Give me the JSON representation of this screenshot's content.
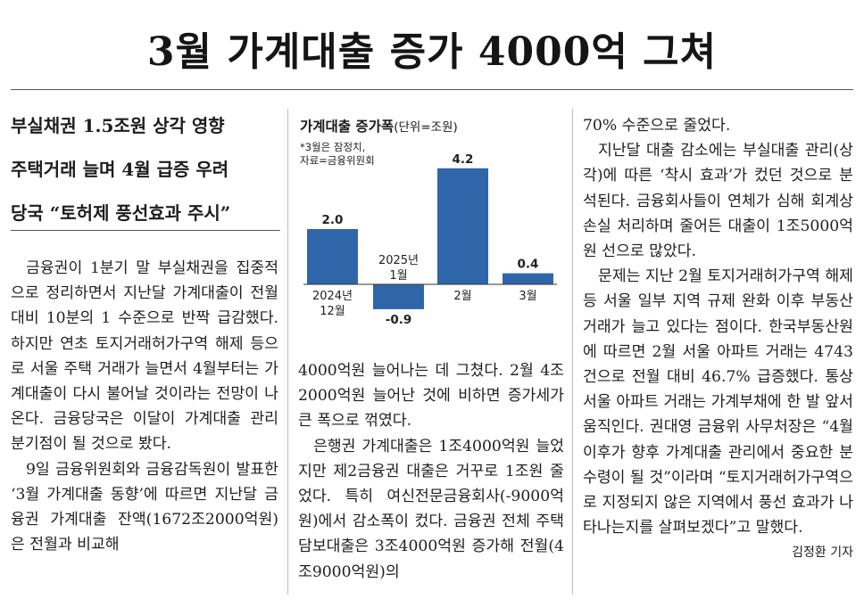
{
  "article": {
    "headline": "3월 가계대출 증가 4000억 그쳐",
    "subheads": [
      "부실채권 1.5조원 상각 영향",
      "주택거래 늘며 4월 급증 우려",
      "당국 “토허제 풍선효과 주시”"
    ],
    "column1": [
      "금융권이 1분기 말 부실채권을 집중적으로 정리하면서 지난달 가계대출이 전월 대비 10분의 1 수준으로 반짝 급감했다. 하지만 연초 토지거래허가구역 해제 등으로 서울 주택 거래가 늘면서 4월부터는 가계대출이 다시 불어날 것이라는 전망이 나온다. 금융당국은 이달이 가계대출 관리 분기점이 될 것으로 봤다.",
      "9일 금융위원회와 금융감독원이 발표한 ‘3월 가계대출 동향’에 따르면 지난달 금융권 가계대출 잔액(1672조2000억원)은 전월과 비교해"
    ],
    "column2": [
      "4000억원 늘어나는 데 그쳤다. 2월 4조2000억원 늘어난 것에 비하면 증가세가 큰 폭으로 꺾였다.",
      "은행권 가계대출은 1조4000억원 늘었지만 제2금융권 대출은 거꾸로 1조원 줄었다. 특히 여신전문금융회사(-9000억원)에서 감소폭이 컸다. 금융권 전체 주택담보대출은 3조4000억원 증가해 전월(4조9000억원)의"
    ],
    "column3": [
      "70% 수준으로 줄었다.",
      "지난달 대출 감소에는 부실대출 관리(상각)에 따른 ‘착시 효과’가 컸던 것으로 분석된다. 금융회사들이 연체가 심해 회계상 손실 처리하며 줄어든 대출이 1조5000억원 선으로 많았다.",
      "문제는 지난 2월 토지거래허가구역 해제 등 서울 일부 지역 규제 완화 이후 부동산 거래가 늘고 있다는 점이다. 한국부동산원에 따르면 2월 서울 아파트 거래는 4743건으로 전월 대비 46.7% 급증했다. 통상 서울 아파트 거래는 가계부채에 한 발 앞서 움직인다. 권대영 금융위 사무처장은 “4월 이후가 향후 가계대출 관리에서 중요한 분수령이 될 것”이라며 “토지거래허가구역으로 지정되지 않은 지역에서 풍선 효과가 나타나는지를 살펴보겠다”고 말했다."
    ],
    "byline": "김정환 기자"
  },
  "chart_data": {
    "type": "bar",
    "title": "가계대출 증가폭",
    "unit": "(단위=조원)",
    "note_lines": [
      "*3월은 잠정치,",
      "자료=금융위원회"
    ],
    "categories": [
      [
        "2024년",
        "12월"
      ],
      [
        "2025년",
        "1월"
      ],
      [
        "2월"
      ],
      [
        "3월"
      ]
    ],
    "values": [
      2.0,
      -0.9,
      4.2,
      0.4
    ],
    "value_labels": [
      "2.0",
      "-0.9",
      "4.2",
      "0.4"
    ],
    "bar_color": "#2f66a9",
    "xlabel": "",
    "ylabel": ""
  }
}
